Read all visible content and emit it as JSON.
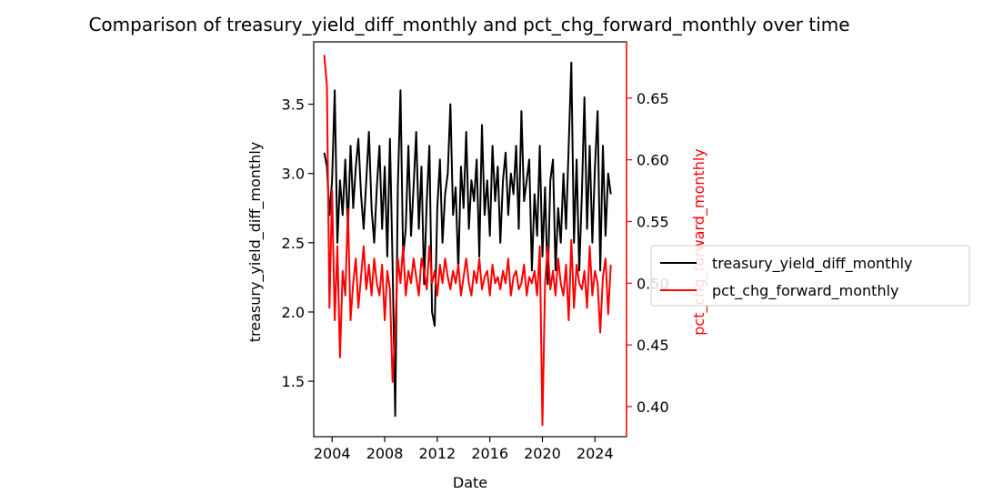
{
  "chart_data": {
    "type": "line",
    "title": "Comparison of treasury_yield_diff_monthly and pct_chg_forward_monthly over time",
    "xlabel": "Date",
    "ylabel_left": "treasury_yield_diff_monthly",
    "ylabel_right": "pct_chg_forward_monthly",
    "x_ticks": [
      "2004",
      "2008",
      "2012",
      "2016",
      "2020",
      "2024"
    ],
    "y_left_ticks": [
      "1.5",
      "2.0",
      "2.5",
      "3.0",
      "3.5"
    ],
    "y_right_ticks": [
      "0.40",
      "0.45",
      "0.50",
      "0.55",
      "0.60",
      "0.65"
    ],
    "xlim": [
      2002.6,
      2026.4
    ],
    "ylim_left": [
      1.1,
      3.95
    ],
    "ylim_right": [
      0.3756,
      0.6956
    ],
    "legend_position": "right, outside",
    "grid": false,
    "series": [
      {
        "name": "treasury_yield_diff_monthly",
        "axis": "left",
        "color": "#000000",
        "x": [
          2003.4,
          2003.6,
          2003.8,
          2004.0,
          2004.2,
          2004.4,
          2004.6,
          2004.8,
          2005.0,
          2005.2,
          2005.4,
          2005.6,
          2005.8,
          2006.0,
          2006.2,
          2006.4,
          2006.6,
          2006.8,
          2007.0,
          2007.2,
          2007.4,
          2007.6,
          2007.8,
          2008.0,
          2008.2,
          2008.4,
          2008.6,
          2008.8,
          2009.0,
          2009.2,
          2009.4,
          2009.6,
          2009.8,
          2010.0,
          2010.2,
          2010.4,
          2010.6,
          2010.8,
          2011.0,
          2011.2,
          2011.4,
          2011.6,
          2011.8,
          2012.0,
          2012.2,
          2012.4,
          2012.6,
          2012.8,
          2013.0,
          2013.2,
          2013.4,
          2013.6,
          2013.8,
          2014.0,
          2014.2,
          2014.4,
          2014.6,
          2014.8,
          2015.0,
          2015.2,
          2015.4,
          2015.6,
          2015.8,
          2016.0,
          2016.2,
          2016.4,
          2016.6,
          2016.8,
          2017.0,
          2017.2,
          2017.4,
          2017.6,
          2017.8,
          2018.0,
          2018.2,
          2018.4,
          2018.6,
          2018.8,
          2019.0,
          2019.2,
          2019.4,
          2019.6,
          2019.8,
          2020.0,
          2020.2,
          2020.4,
          2020.6,
          2020.8,
          2021.0,
          2021.2,
          2021.4,
          2021.6,
          2021.8,
          2022.0,
          2022.2,
          2022.4,
          2022.6,
          2022.8,
          2023.0,
          2023.2,
          2023.4,
          2023.6,
          2023.8,
          2024.0,
          2024.2,
          2024.4,
          2024.6,
          2024.8,
          2025.0,
          2025.2
        ],
        "values": [
          3.15,
          3.05,
          2.7,
          2.95,
          3.6,
          2.5,
          2.95,
          2.7,
          3.1,
          2.6,
          3.2,
          2.75,
          3.05,
          3.25,
          2.85,
          2.6,
          2.95,
          3.3,
          2.75,
          2.5,
          2.9,
          3.2,
          2.6,
          3.05,
          2.4,
          3.25,
          2.35,
          1.25,
          2.9,
          3.6,
          2.4,
          2.6,
          3.2,
          2.55,
          2.9,
          3.3,
          2.6,
          3.05,
          2.2,
          2.8,
          3.2,
          2.0,
          1.9,
          2.75,
          3.1,
          2.5,
          2.85,
          3.0,
          3.5,
          2.7,
          2.9,
          2.3,
          3.05,
          2.75,
          3.3,
          2.6,
          2.95,
          2.8,
          3.1,
          2.4,
          3.35,
          2.7,
          2.95,
          2.55,
          3.2,
          2.8,
          3.05,
          2.5,
          2.95,
          3.15,
          2.7,
          3.0,
          2.85,
          3.2,
          2.6,
          3.45,
          2.8,
          2.95,
          3.1,
          2.3,
          2.85,
          2.55,
          3.2,
          2.4,
          2.9,
          2.2,
          2.95,
          3.1,
          2.3,
          2.75,
          2.5,
          3.0,
          2.6,
          3.2,
          3.8,
          2.5,
          3.1,
          2.3,
          2.85,
          3.55,
          2.6,
          3.2,
          2.5,
          3.05,
          3.45,
          2.3,
          3.2,
          2.55,
          3.0,
          2.85
        ]
      },
      {
        "name": "pct_chg_forward_monthly",
        "axis": "right",
        "color": "#ff0000",
        "x": [
          2003.4,
          2003.6,
          2003.8,
          2004.0,
          2004.2,
          2004.4,
          2004.6,
          2004.8,
          2005.0,
          2005.2,
          2005.4,
          2005.6,
          2005.8,
          2006.0,
          2006.2,
          2006.4,
          2006.6,
          2006.8,
          2007.0,
          2007.2,
          2007.4,
          2007.6,
          2007.8,
          2008.0,
          2008.2,
          2008.4,
          2008.6,
          2008.8,
          2009.0,
          2009.2,
          2009.4,
          2009.6,
          2009.8,
          2010.0,
          2010.2,
          2010.4,
          2010.6,
          2010.8,
          2011.0,
          2011.2,
          2011.4,
          2011.6,
          2011.8,
          2012.0,
          2012.2,
          2012.4,
          2012.6,
          2012.8,
          2013.0,
          2013.2,
          2013.4,
          2013.6,
          2013.8,
          2014.0,
          2014.2,
          2014.4,
          2014.6,
          2014.8,
          2015.0,
          2015.2,
          2015.4,
          2015.6,
          2015.8,
          2016.0,
          2016.2,
          2016.4,
          2016.6,
          2016.8,
          2017.0,
          2017.2,
          2017.4,
          2017.6,
          2017.8,
          2018.0,
          2018.2,
          2018.4,
          2018.6,
          2018.8,
          2019.0,
          2019.2,
          2019.4,
          2019.6,
          2019.8,
          2020.0,
          2020.2,
          2020.4,
          2020.6,
          2020.8,
          2021.0,
          2021.2,
          2021.4,
          2021.6,
          2021.8,
          2022.0,
          2022.2,
          2022.4,
          2022.6,
          2022.8,
          2023.0,
          2023.2,
          2023.4,
          2023.6,
          2023.8,
          2024.0,
          2024.2,
          2024.4,
          2024.6,
          2024.8,
          2025.0,
          2025.2
        ],
        "values": [
          0.685,
          0.66,
          0.48,
          0.575,
          0.47,
          0.53,
          0.44,
          0.51,
          0.49,
          0.56,
          0.47,
          0.5,
          0.52,
          0.48,
          0.505,
          0.53,
          0.495,
          0.515,
          0.49,
          0.52,
          0.5,
          0.49,
          0.515,
          0.47,
          0.51,
          0.495,
          0.42,
          0.46,
          0.52,
          0.5,
          0.53,
          0.49,
          0.51,
          0.5,
          0.52,
          0.505,
          0.49,
          0.52,
          0.51,
          0.495,
          0.53,
          0.5,
          0.51,
          0.49,
          0.515,
          0.5,
          0.52,
          0.505,
          0.495,
          0.51,
          0.5,
          0.515,
          0.49,
          0.505,
          0.52,
          0.5,
          0.49,
          0.51,
          0.5,
          0.52,
          0.495,
          0.505,
          0.51,
          0.49,
          0.515,
          0.5,
          0.505,
          0.495,
          0.51,
          0.5,
          0.52,
          0.49,
          0.505,
          0.51,
          0.495,
          0.5,
          0.515,
          0.49,
          0.505,
          0.5,
          0.51,
          0.49,
          0.53,
          0.385,
          0.5,
          0.53,
          0.495,
          0.51,
          0.49,
          0.52,
          0.5,
          0.49,
          0.515,
          0.47,
          0.535,
          0.48,
          0.515,
          0.5,
          0.495,
          0.51,
          0.48,
          0.53,
          0.49,
          0.51,
          0.5,
          0.46,
          0.505,
          0.52,
          0.475,
          0.515
        ]
      }
    ]
  }
}
